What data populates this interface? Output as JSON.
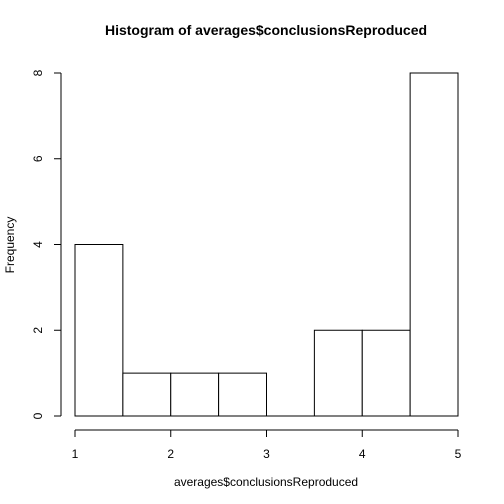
{
  "chart_data": {
    "type": "bar",
    "title": "Histogram of averages$conclusionsReproduced",
    "xlabel": "averages$conclusionsReproduced",
    "ylabel": "Frequency",
    "bins": [
      {
        "start": 1.0,
        "end": 1.5,
        "count": 4
      },
      {
        "start": 1.5,
        "end": 2.0,
        "count": 1
      },
      {
        "start": 2.0,
        "end": 2.5,
        "count": 1
      },
      {
        "start": 2.5,
        "end": 3.0,
        "count": 1
      },
      {
        "start": 3.0,
        "end": 3.5,
        "count": 0
      },
      {
        "start": 3.5,
        "end": 4.0,
        "count": 2
      },
      {
        "start": 4.0,
        "end": 4.5,
        "count": 2
      },
      {
        "start": 4.5,
        "end": 5.0,
        "count": 8
      }
    ],
    "xlim": [
      1,
      5
    ],
    "ylim": [
      0,
      8
    ],
    "x_ticks": [
      1,
      2,
      3,
      4,
      5
    ],
    "y_ticks": [
      0,
      2,
      4,
      6,
      8
    ],
    "grid": false,
    "legend": "none"
  }
}
